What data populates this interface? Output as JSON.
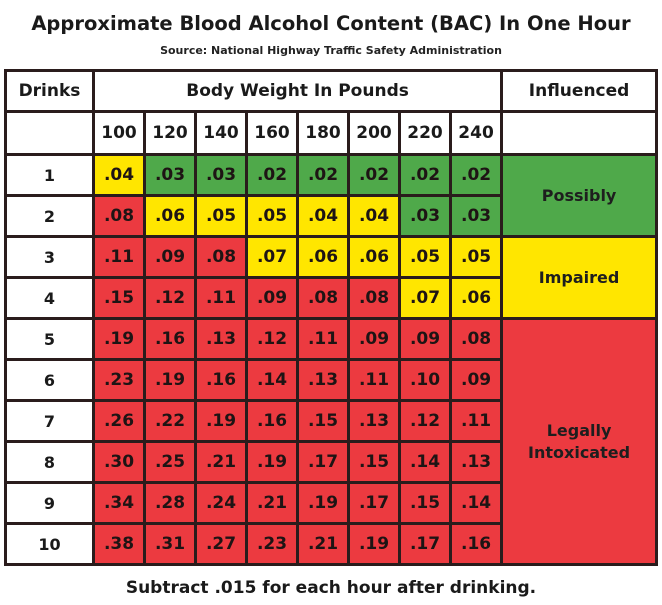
{
  "chart_data": {
    "type": "table",
    "title": "Approximate Blood Alcohol Content (BAC) In One Hour",
    "subtitle": "Source: National Highway Traffic Safety Administration",
    "footer": "Subtract .015 for each hour after drinking.",
    "headers": {
      "drinks": "Drinks",
      "body_weight": "Body Weight In Pounds",
      "influenced": "Influenced"
    },
    "weights": [
      "100",
      "120",
      "140",
      "160",
      "180",
      "200",
      "220",
      "240"
    ],
    "rows": [
      {
        "drinks": "1",
        "values": [
          ".04",
          ".03",
          ".03",
          ".02",
          ".02",
          ".02",
          ".02",
          ".02"
        ]
      },
      {
        "drinks": "2",
        "values": [
          ".08",
          ".06",
          ".05",
          ".05",
          ".04",
          ".04",
          ".03",
          ".03"
        ]
      },
      {
        "drinks": "3",
        "values": [
          ".11",
          ".09",
          ".08",
          ".07",
          ".06",
          ".06",
          ".05",
          ".05"
        ]
      },
      {
        "drinks": "4",
        "values": [
          ".15",
          ".12",
          ".11",
          ".09",
          ".08",
          ".08",
          ".07",
          ".06"
        ]
      },
      {
        "drinks": "5",
        "values": [
          ".19",
          ".16",
          ".13",
          ".12",
          ".11",
          ".09",
          ".09",
          ".08"
        ]
      },
      {
        "drinks": "6",
        "values": [
          ".23",
          ".19",
          ".16",
          ".14",
          ".13",
          ".11",
          ".10",
          ".09"
        ]
      },
      {
        "drinks": "7",
        "values": [
          ".26",
          ".22",
          ".19",
          ".16",
          ".15",
          ".13",
          ".12",
          ".11"
        ]
      },
      {
        "drinks": "8",
        "values": [
          ".30",
          ".25",
          ".21",
          ".19",
          ".17",
          ".15",
          ".14",
          ".13"
        ]
      },
      {
        "drinks": "9",
        "values": [
          ".34",
          ".28",
          ".24",
          ".21",
          ".19",
          ".17",
          ".15",
          ".14"
        ]
      },
      {
        "drinks": "10",
        "values": [
          ".38",
          ".31",
          ".27",
          ".23",
          ".21",
          ".19",
          ".17",
          ".16"
        ]
      }
    ],
    "zones": [
      {
        "label": "Possibly",
        "color": "#4fa94a",
        "max_bac": 0.03
      },
      {
        "label": "Impaired",
        "color": "#ffe600",
        "max_bac": 0.07
      },
      {
        "label_line1": "Legally",
        "label_line2": "Intoxicated",
        "color": "#ec3a40",
        "max_bac": null
      }
    ]
  }
}
